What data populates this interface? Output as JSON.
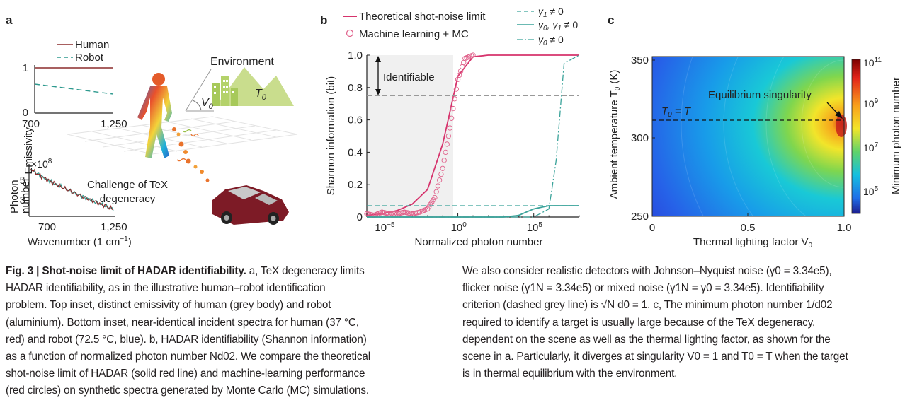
{
  "panel_labels": {
    "a": "a",
    "b": "b",
    "c": "c"
  },
  "panel_a": {
    "legend": {
      "human": "Human",
      "robot": "Robot"
    },
    "top_inset": {
      "ylabel": "Emissivity",
      "ytick_hi": "1",
      "ytick_lo": "0",
      "xtick_lo": "700",
      "xtick_hi": "1,250"
    },
    "bottom_inset": {
      "ylabel_1": "Photon",
      "ylabel_2": "number",
      "multiplier": "×10",
      "multiplier_exp": "8",
      "ytick_5": "5",
      "ytick_3": "3",
      "xtick_lo": "700",
      "xtick_hi": "1,250",
      "xlabel": "Wavenumber (1 cm",
      "xlabel_exp": "−1",
      "xlabel_end": ")"
    },
    "environment_label": "Environment",
    "v0_label": "V",
    "v0_sub": "0",
    "t0_label": "T",
    "t0_sub": "0",
    "challenge_1": "Challenge of TeX",
    "challenge_2": "degeneracy"
  },
  "panel_b": {
    "legend": {
      "theory": "Theoretical shot-noise limit",
      "ml": "Machine learning + MC",
      "g1": "γ",
      "g1_sub": "1",
      "g1_rest": " ≠ 0",
      "g01": "γ",
      "g01_sub": "0",
      "g01_mid": ", γ",
      "g01_sub2": "1",
      "g01_rest": " ≠ 0",
      "g0": "γ",
      "g0_sub": "0",
      "g0_rest": " ≠ 0"
    },
    "identifiable": "Identifiable",
    "ylabel": "Shannon information (bit)",
    "xlabel": "Normalized photon number",
    "yticks": [
      "0",
      "0.2",
      "0.4",
      "0.6",
      "0.8",
      "1.0"
    ],
    "xticks": [
      {
        "base": "10",
        "exp": "−5"
      },
      {
        "base": "10",
        "exp": "0"
      },
      {
        "base": "10",
        "exp": "5"
      }
    ]
  },
  "panel_c": {
    "ylabel": "Ambient temperature T",
    "ylabel_sub": "0",
    "ylabel_unit": " (K)",
    "xlabel": "Thermal lighting factor V",
    "xlabel_sub": "0",
    "yticks": [
      "250",
      "300",
      "350"
    ],
    "xticks": [
      "0",
      "0.5",
      "1.0"
    ],
    "annotation": "Equilibrium singularity",
    "t0_eq": "T",
    "t0_eq_sub": "0",
    "t0_eq_rest": " = T",
    "colorbar_label": "Minimum photon number",
    "colorbar_ticks": [
      {
        "base": "10",
        "exp": "11"
      },
      {
        "base": "10",
        "exp": "9"
      },
      {
        "base": "10",
        "exp": "7"
      },
      {
        "base": "10",
        "exp": "5"
      }
    ]
  },
  "caption": {
    "fig": "Fig. 3 | ",
    "title": "Shot-noise limit of HADAR identifiability.",
    "left_lines": [
      " a, TeX degeneracy limits",
      "HADAR identifiability, as in the illustrative human–robot identification",
      "problem. Top inset, distinct emissivity of human (grey body) and robot",
      "(aluminium). Bottom inset, near-identical incident spectra for human (37 °C,",
      "red) and robot (72.5 °C, blue). b, HADAR identifiability (Shannon information)",
      "as a function of normalized photon number Nd02. We compare the theoretical",
      "shot-noise limit of HADAR (solid red line) and machine-learning performance",
      "(red circles) on synthetic spectra generated by Monte Carlo (MC) simulations."
    ],
    "right_lines": [
      "We also consider realistic detectors with Johnson–Nyquist noise (γ0 = 3.34e5),",
      "flicker noise (γ1N = 3.34e5) or mixed noise (γ1N = γ0 = 3.34e5). Identifiability",
      "criterion (dashed grey line) is √N d0 = 1. c, The minimum photon number 1/d02",
      "required to identify a target is usually large because of the TeX degeneracy,",
      "dependent on the scene as well as the thermal lighting factor, as shown for the",
      "scene in a. Particularly, it diverges at singularity V0 = 1 and T0 = T when the target",
      "is in thermal equilibrium with the environment."
    ]
  },
  "chart_data": [
    {
      "type": "line",
      "panel": "b",
      "x_scale": "log",
      "xlim": [
        1e-06,
        100000000.0
      ],
      "ylim": [
        0,
        1.0
      ],
      "xlabel": "Normalized photon number",
      "ylabel": "Shannon information (bit)",
      "series": [
        {
          "name": "Theoretical shot-noise limit",
          "style": "solid",
          "color": "#d6336c",
          "x": [
            1e-06,
            1e-05,
            0.0001,
            0.001,
            0.01,
            0.1,
            1,
            10,
            100.0,
            1000.0,
            10000.0,
            100000000.0
          ],
          "y": [
            0.01,
            0.02,
            0.04,
            0.08,
            0.17,
            0.45,
            0.87,
            0.99,
            1.0,
            1.0,
            1.0,
            1.0
          ]
        },
        {
          "name": "Machine learning + MC",
          "style": "markers",
          "color": "#e0608a",
          "x": [
            1e-06,
            3e-06,
            1e-05,
            3e-05,
            0.0001,
            0.0003,
            0.001,
            0.003,
            0.01,
            0.03,
            0.1,
            0.3,
            1,
            3,
            10
          ],
          "y": [
            0.02,
            0.01,
            0.03,
            0.02,
            0.02,
            0.03,
            0.02,
            0.03,
            0.05,
            0.12,
            0.3,
            0.55,
            0.85,
            0.98,
            1.0
          ]
        },
        {
          "name": "γ1 ≠ 0",
          "style": "dashed",
          "color": "#3aa39a",
          "x": [
            1e-06,
            0.01,
            100000000.0
          ],
          "y": [
            0.07,
            0.07,
            0.07
          ]
        },
        {
          "name": "γ0, γ1 ≠ 0",
          "style": "solid",
          "color": "#3aa39a",
          "x": [
            1e-06,
            1000.0,
            10000.0,
            100000.0,
            1000000.0,
            100000000.0
          ],
          "y": [
            0,
            0.0,
            0.01,
            0.05,
            0.07,
            0.07
          ]
        },
        {
          "name": "γ0 ≠ 0",
          "style": "dashdot",
          "color": "#3aa39a",
          "x": [
            1e-06,
            100000.0,
            1000000.0,
            3000000.0,
            10000000.0,
            100000000.0
          ],
          "y": [
            0,
            0.0,
            0.05,
            0.35,
            0.95,
            1.0
          ]
        },
        {
          "name": "criterion",
          "style": "dashed",
          "color": "#999999",
          "x": [
            1e-06,
            100000000.0
          ],
          "y": [
            0.75,
            0.75
          ]
        }
      ]
    },
    {
      "type": "heatmap",
      "panel": "c",
      "xlim": [
        0,
        1.0
      ],
      "ylim": [
        250,
        350
      ],
      "colorbar_scale": "log",
      "colorbar_range": [
        10000.0,
        100000000000.0
      ],
      "xlabel": "Thermal lighting factor V0",
      "ylabel": "Ambient temperature T0 (K)",
      "singularity": {
        "x": 1.0,
        "y": 310
      }
    }
  ],
  "colors": {
    "human": "#8b2b2b",
    "robot": "#2f9a8f",
    "accent": "#d6336c",
    "teal": "#3aa39a"
  }
}
